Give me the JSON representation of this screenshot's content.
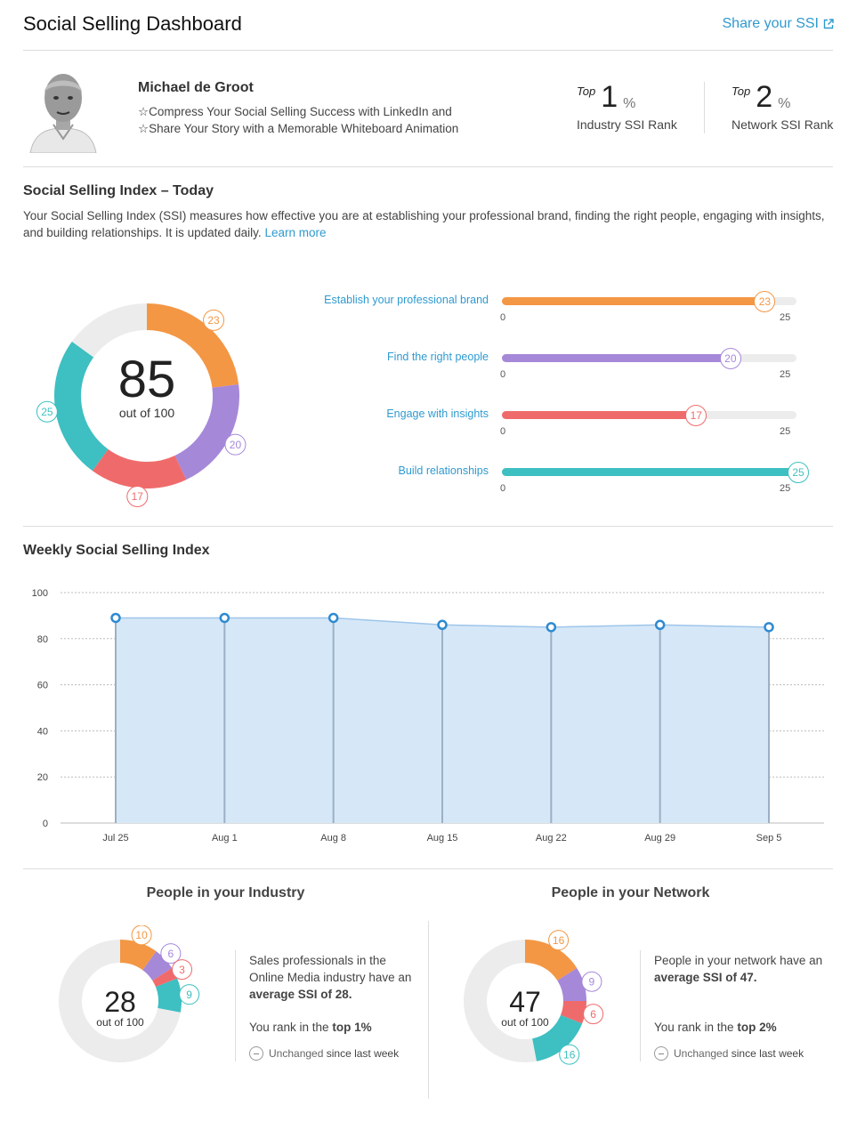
{
  "header": {
    "title": "Social Selling Dashboard",
    "share_label": "Share your SSI"
  },
  "profile": {
    "name": "Michael de Groot",
    "headline_lines": [
      "☆Compress Your Social Selling Success with LinkedIn and",
      "☆Share Your Story with a Memorable Whiteboard Animation"
    ]
  },
  "ranks": {
    "industry": {
      "top": "Top",
      "value": "1",
      "pct": "%",
      "label": "Industry SSI Rank"
    },
    "network": {
      "top": "Top",
      "value": "2",
      "pct": "%",
      "label": "Network SSI Rank"
    }
  },
  "today": {
    "heading": "Social Selling Index – Today",
    "desc": "Your Social Selling Index (SSI) measures how effective you are at establishing your professional brand, finding the right people, engaging with insights, and building relationships. It is updated daily.",
    "learn_more": "Learn more",
    "score": "85",
    "out_of": "out of 100",
    "max_per_component": 25,
    "components": [
      {
        "label": "Establish your professional brand",
        "value": 23,
        "value_text": "23",
        "min_text": "0",
        "max_text": "25",
        "color": "#f39745"
      },
      {
        "label": "Find the right people",
        "value": 20,
        "value_text": "20",
        "min_text": "0",
        "max_text": "25",
        "color": "#a688d9"
      },
      {
        "label": "Engage with insights",
        "value": 17,
        "value_text": "17",
        "min_text": "0",
        "max_text": "25",
        "color": "#ef6b6b"
      },
      {
        "label": "Build relationships",
        "value": 25,
        "value_text": "25",
        "min_text": "0",
        "max_text": "25",
        "color": "#3ebfc1"
      }
    ],
    "remainder_color": "#ececec"
  },
  "weekly": {
    "heading": "Weekly Social Selling Index",
    "chart_data": {
      "type": "area",
      "title": "Weekly Social Selling Index",
      "x": [
        "Jul 25",
        "Aug 1",
        "Aug 8",
        "Aug 15",
        "Aug 22",
        "Aug 29",
        "Sep 5"
      ],
      "values": [
        89,
        89,
        89,
        86,
        85,
        86,
        85
      ],
      "ylim": [
        0,
        100
      ],
      "yticks": [
        "0",
        "20",
        "40",
        "60",
        "80",
        "100"
      ],
      "grid": true,
      "color": "#2f8ad0",
      "fill": "#d6e8f8"
    }
  },
  "industry": {
    "title": "People in your Industry",
    "score": "28",
    "out_of": "out of 100",
    "segments": [
      {
        "value": 10,
        "text": "10",
        "color": "#f39745"
      },
      {
        "value": 6,
        "text": "6",
        "color": "#a688d9"
      },
      {
        "value": 3,
        "text": "3",
        "color": "#ef6b6b"
      },
      {
        "value": 9,
        "text": "9",
        "color": "#3ebfc1"
      }
    ],
    "text_1a": "Sales professionals in the Online Media industry have an",
    "text_1b": "average SSI of 28.",
    "text_2a": "You rank in the",
    "text_2b": "top 1%",
    "unchanged_a": "Unchanged",
    "unchanged_b": "since last week"
  },
  "network": {
    "title": "People in your Network",
    "score": "47",
    "out_of": "out of 100",
    "segments": [
      {
        "value": 16,
        "text": "16",
        "color": "#f39745"
      },
      {
        "value": 9,
        "text": "9",
        "color": "#a688d9"
      },
      {
        "value": 6,
        "text": "6",
        "color": "#ef6b6b"
      },
      {
        "value": 16,
        "text": "16",
        "color": "#3ebfc1"
      }
    ],
    "text_1a": "People in your network have an",
    "text_1b": "average SSI of 47.",
    "text_2a": "You rank in the",
    "text_2b": "top 2%",
    "unchanged_a": "Unchanged",
    "unchanged_b": "since last week"
  }
}
